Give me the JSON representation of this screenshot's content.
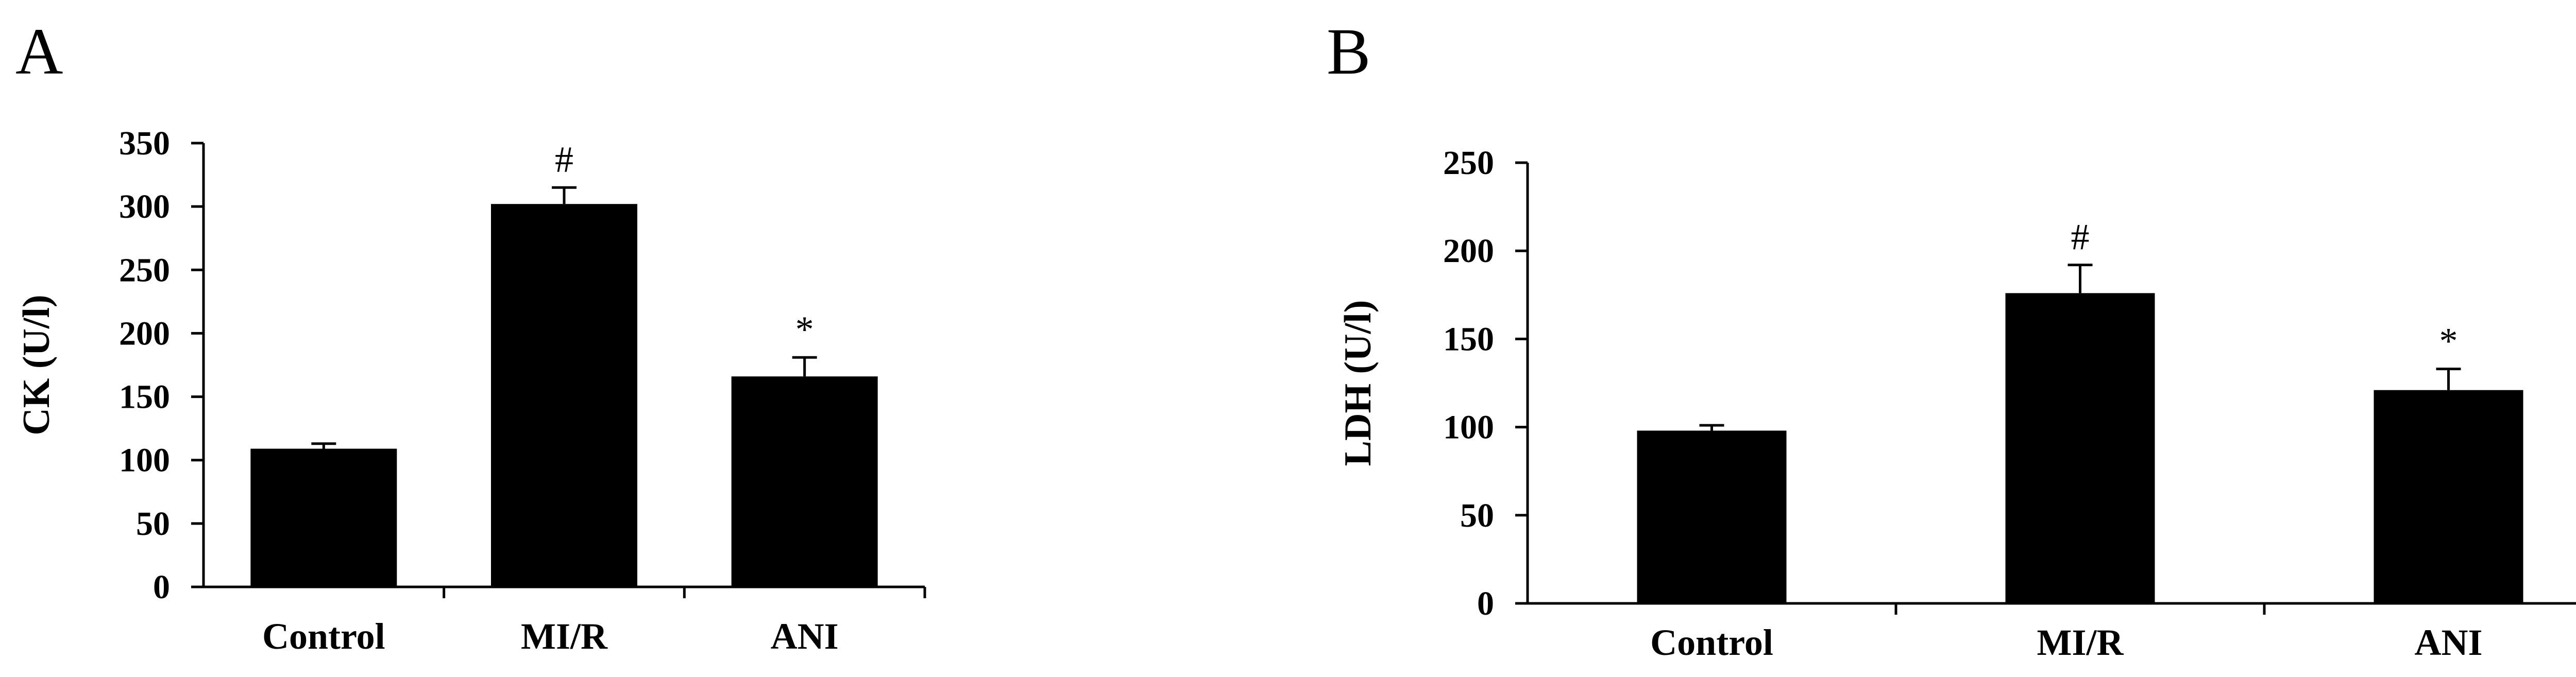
{
  "chart_data": [
    {
      "panel": "A",
      "type": "bar",
      "categories": [
        "Control",
        "MI/R",
        "ANI"
      ],
      "values": [
        109,
        302,
        166
      ],
      "errors": [
        4,
        13,
        15
      ],
      "annotations": [
        "",
        "#",
        "*"
      ],
      "ylabel": "CK (U/l)",
      "ylim": [
        0,
        350
      ],
      "yticks": [
        0,
        50,
        100,
        150,
        200,
        250,
        300,
        350
      ],
      "grid": false,
      "bar_color": "#000000"
    },
    {
      "panel": "B",
      "type": "bar",
      "categories": [
        "Control",
        "MI/R",
        "ANI"
      ],
      "values": [
        98,
        176,
        121
      ],
      "errors": [
        3,
        16,
        12
      ],
      "annotations": [
        "",
        "#",
        "*"
      ],
      "ylabel": "LDH (U/l)",
      "ylim": [
        0,
        250
      ],
      "yticks": [
        0,
        50,
        100,
        150,
        200,
        250
      ],
      "grid": false,
      "bar_color": "#000000"
    }
  ]
}
